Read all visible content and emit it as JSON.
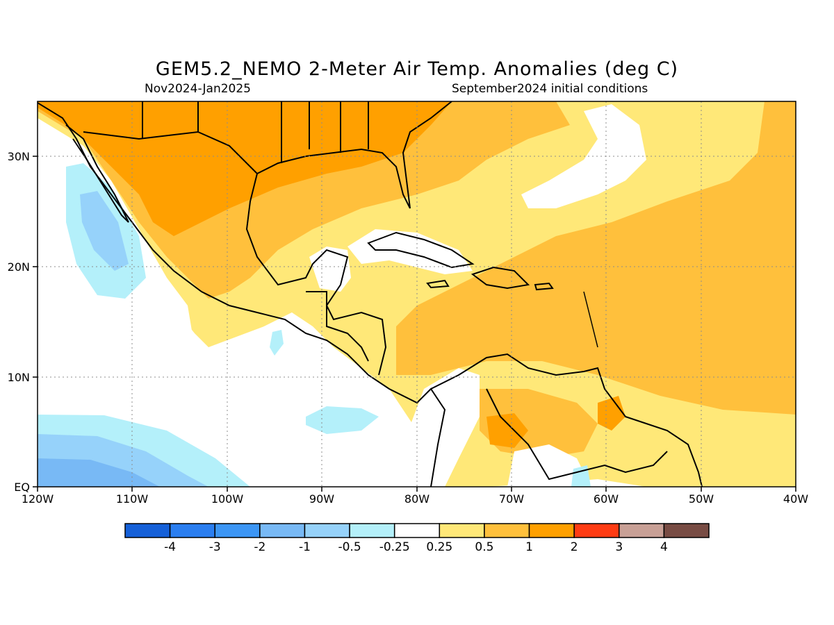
{
  "title": "GEM5.2_NEMO 2-Meter Air Temp. Anomalies (deg C)",
  "period": "Nov2024-Jan2025",
  "initial_conditions": "September2024 initial conditions",
  "lon_labels": [
    "120W",
    "110W",
    "100W",
    "90W",
    "80W",
    "70W",
    "60W",
    "50W",
    "40W"
  ],
  "lat_labels": [
    "30N",
    "20N",
    "10N",
    "EQ"
  ],
  "colorbar": {
    "colors": [
      "#1560d8",
      "#2a7ef0",
      "#3c96f5",
      "#78b9f5",
      "#96d2fa",
      "#b4f0fa",
      "#ffffff",
      "#ffe878",
      "#ffc03c",
      "#ffa000",
      "#ff3c14",
      "#c8a096",
      "#784c44"
    ],
    "labels": [
      "-4",
      "-3",
      "-2",
      "-1",
      "-0.5",
      "-0.25",
      "0.25",
      "0.5",
      "1",
      "2",
      "3",
      "4"
    ]
  }
}
